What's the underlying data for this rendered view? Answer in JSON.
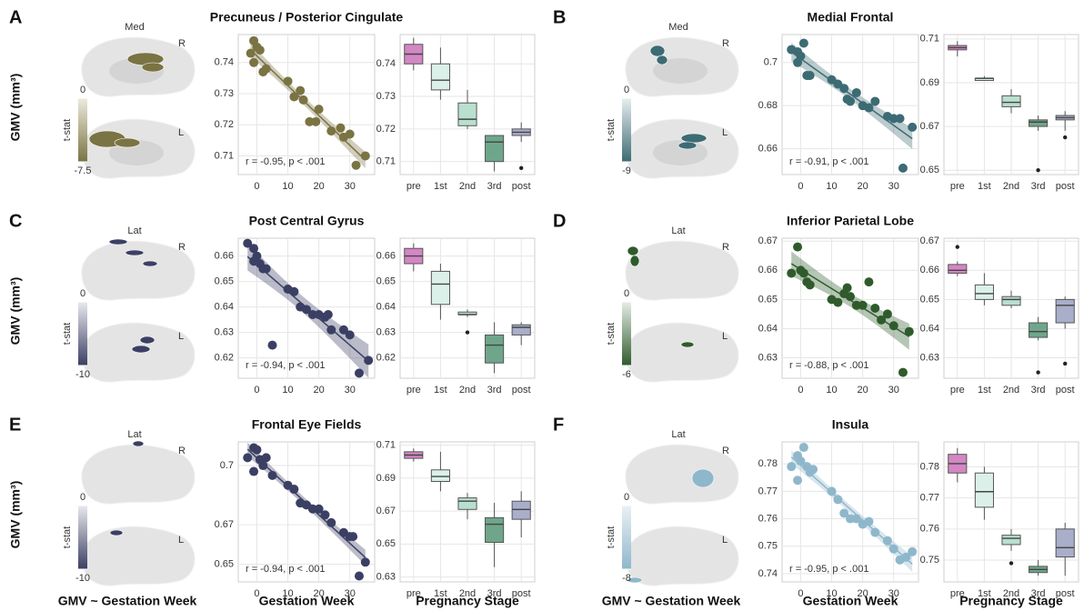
{
  "panels": [
    {
      "letter": "A",
      "ylabel": "GMV (mm³)",
      "brain": {
        "view": "Med",
        "right": "R",
        "left": "L",
        "colorbar": {
          "title": "t-stat",
          "lim": [
            -7.5,
            0
          ],
          "ticks": [
            0,
            -7.5
          ],
          "colors": [
            "#ecebdc",
            "#7a7343"
          ]
        }
      }
    },
    {
      "letter": "B",
      "brain": {
        "view": "Med",
        "right": "R",
        "left": "L",
        "colorbar": {
          "title": "t-stat",
          "lim": [
            -9,
            0
          ],
          "ticks": [
            0,
            -9
          ],
          "colors": [
            "#e6eeef",
            "#3d6b74"
          ]
        }
      }
    },
    {
      "letter": "C",
      "ylabel": "GMV (mm³)",
      "brain": {
        "view": "Lat",
        "right": "R",
        "left": "L",
        "colorbar": {
          "title": "t-stat",
          "lim": [
            -10,
            0
          ],
          "ticks": [
            0,
            -10
          ],
          "colors": [
            "#e8e9ef",
            "#3b3f63"
          ]
        }
      }
    },
    {
      "letter": "D",
      "brain": {
        "view": "Lat",
        "right": "R",
        "left": "L",
        "colorbar": {
          "title": "t-stat",
          "lim": [
            -6,
            0
          ],
          "ticks": [
            0,
            -6
          ],
          "colors": [
            "#e6ede5",
            "#2f5b2c"
          ]
        }
      }
    },
    {
      "letter": "E",
      "ylabel": "GMV (mm³)",
      "caption": "GMV ~ Gestation Week",
      "brain": {
        "view": "Lat",
        "right": "R",
        "left": "L",
        "colorbar": {
          "title": "t-stat",
          "lim": [
            -10,
            0
          ],
          "ticks": [
            0,
            -10
          ],
          "colors": [
            "#e8e9ef",
            "#3b3f63"
          ]
        }
      }
    },
    {
      "letter": "F",
      "caption": "GMV ~ Gestation Week",
      "brain": {
        "view": "Lat",
        "right": "R",
        "left": "L",
        "colorbar": {
          "title": "t-stat",
          "lim": [
            -8,
            0
          ],
          "ticks": [
            0,
            -8
          ],
          "colors": [
            "#eaf1f4",
            "#8fb7cb"
          ]
        }
      }
    }
  ],
  "chart_data": [
    {
      "type": "scatter",
      "title": "Precuneus / Posterior Cingulate",
      "annotation": "r = -0.95, p < .001",
      "color": "#7a7343",
      "x": [
        -2,
        -1,
        0,
        1,
        2,
        3,
        -1,
        10,
        12,
        14,
        15,
        17,
        19,
        20,
        24,
        27,
        28,
        30,
        32,
        35
      ],
      "values": [
        0.743,
        0.747,
        0.745,
        0.744,
        0.737,
        0.738,
        0.74,
        0.734,
        0.729,
        0.731,
        0.728,
        0.721,
        0.721,
        0.725,
        0.718,
        0.719,
        0.716,
        0.717,
        0.707,
        0.71
      ],
      "xlim": [
        -6,
        38
      ],
      "xticks": [
        0,
        10,
        20,
        30
      ],
      "ylim": [
        0.704,
        0.749
      ],
      "yticks": [
        0.71,
        0.72,
        0.73,
        0.74
      ],
      "grid": true
    },
    {
      "type": "box",
      "categories": [
        "pre",
        "1st",
        "2nd",
        "3rd",
        "post"
      ],
      "colors": [
        "#d387c4",
        "#dcf0ea",
        "#b9dfcf",
        "#6fa68b",
        "#a9aecb"
      ],
      "boxes": [
        {
          "min": 0.738,
          "q1": 0.74,
          "median": 0.743,
          "q3": 0.746,
          "max": 0.748,
          "outliers": []
        },
        {
          "min": 0.729,
          "q1": 0.732,
          "median": 0.735,
          "q3": 0.74,
          "max": 0.745,
          "outliers": []
        },
        {
          "min": 0.72,
          "q1": 0.721,
          "median": 0.723,
          "q3": 0.728,
          "max": 0.732,
          "outliers": []
        },
        {
          "min": 0.707,
          "q1": 0.71,
          "median": 0.716,
          "q3": 0.718,
          "max": 0.718,
          "outliers": []
        },
        {
          "min": 0.716,
          "q1": 0.718,
          "median": 0.719,
          "q3": 0.72,
          "max": 0.722,
          "outliers": [
            0.708
          ]
        }
      ],
      "ylim": [
        0.706,
        0.749
      ],
      "yticks": [
        0.71,
        0.72,
        0.73,
        0.74
      ],
      "grid": true
    },
    {
      "type": "scatter",
      "title": "Medial Frontal",
      "annotation": "r = -0.91, p < .001",
      "color": "#3d6b74",
      "x": [
        -3,
        -1,
        0,
        1,
        2,
        3,
        -1,
        10,
        12,
        14,
        15,
        16,
        18,
        20,
        22,
        24,
        28,
        30,
        32,
        33,
        36
      ],
      "values": [
        0.706,
        0.705,
        0.703,
        0.709,
        0.694,
        0.694,
        0.7,
        0.692,
        0.69,
        0.688,
        0.683,
        0.682,
        0.686,
        0.68,
        0.679,
        0.682,
        0.675,
        0.674,
        0.674,
        0.651,
        0.67
      ],
      "xlim": [
        -6,
        38
      ],
      "xticks": [
        0,
        10,
        20,
        30
      ],
      "ylim": [
        0.648,
        0.713
      ],
      "yticks": [
        0.66,
        0.68,
        0.7
      ],
      "grid": true
    },
    {
      "type": "box",
      "categories": [
        "pre",
        "1st",
        "2nd",
        "3rd",
        "post"
      ],
      "colors": [
        "#d387c4",
        "#dcf0ea",
        "#b9dfcf",
        "#6fa68b",
        "#a9aecb"
      ],
      "boxes": [
        {
          "min": 0.702,
          "q1": 0.705,
          "median": 0.706,
          "q3": 0.707,
          "max": 0.709,
          "outliers": []
        },
        {
          "min": 0.691,
          "q1": 0.691,
          "median": 0.692,
          "q3": 0.692,
          "max": 0.693,
          "outliers": []
        },
        {
          "min": 0.676,
          "q1": 0.679,
          "median": 0.681,
          "q3": 0.684,
          "max": 0.687,
          "outliers": []
        },
        {
          "min": 0.668,
          "q1": 0.67,
          "median": 0.672,
          "q3": 0.673,
          "max": 0.675,
          "outliers": [
            0.65
          ]
        },
        {
          "min": 0.668,
          "q1": 0.673,
          "median": 0.674,
          "q3": 0.675,
          "max": 0.677,
          "outliers": [
            0.665
          ]
        }
      ],
      "ylim": [
        0.648,
        0.712
      ],
      "yticks": [
        0.65,
        0.67,
        0.69,
        0.71
      ],
      "grid": true
    },
    {
      "type": "scatter",
      "title": "Post Central Gyrus",
      "annotation": "r = -0.94, p < .001",
      "color": "#3b3f63",
      "x": [
        -3,
        -1,
        0,
        1,
        2,
        3,
        -1,
        5,
        10,
        12,
        14,
        16,
        18,
        20,
        22,
        23,
        24,
        28,
        30,
        33,
        36
      ],
      "values": [
        0.665,
        0.663,
        0.66,
        0.657,
        0.655,
        0.655,
        0.658,
        0.625,
        0.647,
        0.646,
        0.64,
        0.639,
        0.637,
        0.637,
        0.636,
        0.637,
        0.631,
        0.631,
        0.629,
        0.614,
        0.619
      ],
      "xlim": [
        -6,
        38
      ],
      "xticks": [
        0,
        10,
        20,
        30
      ],
      "ylim": [
        0.612,
        0.667
      ],
      "yticks": [
        0.62,
        0.63,
        0.64,
        0.65,
        0.66
      ],
      "grid": true
    },
    {
      "type": "box",
      "categories": [
        "pre",
        "1st",
        "2nd",
        "3rd",
        "post"
      ],
      "colors": [
        "#d387c4",
        "#dcf0ea",
        "#b9dfcf",
        "#6fa68b",
        "#a9aecb"
      ],
      "boxes": [
        {
          "min": 0.654,
          "q1": 0.657,
          "median": 0.66,
          "q3": 0.663,
          "max": 0.665,
          "outliers": []
        },
        {
          "min": 0.635,
          "q1": 0.641,
          "median": 0.649,
          "q3": 0.654,
          "max": 0.657,
          "outliers": []
        },
        {
          "min": 0.636,
          "q1": 0.637,
          "median": 0.637,
          "q3": 0.638,
          "max": 0.639,
          "outliers": [
            0.63
          ]
        },
        {
          "min": 0.614,
          "q1": 0.618,
          "median": 0.625,
          "q3": 0.629,
          "max": 0.634,
          "outliers": []
        },
        {
          "min": 0.625,
          "q1": 0.629,
          "median": 0.632,
          "q3": 0.633,
          "max": 0.634,
          "outliers": []
        }
      ],
      "ylim": [
        0.612,
        0.667
      ],
      "yticks": [
        0.62,
        0.63,
        0.64,
        0.65,
        0.66
      ],
      "grid": true
    },
    {
      "type": "scatter",
      "title": "Inferior Parietal Lobe",
      "annotation": "r = -0.88, p < .001",
      "color": "#2f5b2c",
      "x": [
        -3,
        -1,
        0,
        1,
        2,
        3,
        10,
        12,
        14,
        15,
        16,
        18,
        20,
        22,
        24,
        26,
        28,
        30,
        33,
        35
      ],
      "values": [
        0.659,
        0.668,
        0.66,
        0.659,
        0.656,
        0.655,
        0.65,
        0.649,
        0.652,
        0.654,
        0.651,
        0.648,
        0.648,
        0.656,
        0.647,
        0.643,
        0.645,
        0.641,
        0.625,
        0.639
      ],
      "xlim": [
        -6,
        38
      ],
      "xticks": [
        0,
        10,
        20,
        30
      ],
      "ylim": [
        0.623,
        0.671
      ],
      "yticks": [
        0.63,
        0.64,
        0.65,
        0.66,
        0.67
      ],
      "grid": true
    },
    {
      "type": "box",
      "categories": [
        "pre",
        "1st",
        "2nd",
        "3rd",
        "post"
      ],
      "colors": [
        "#d387c4",
        "#dcf0ea",
        "#b9dfcf",
        "#6fa68b",
        "#a9aecb"
      ],
      "boxes": [
        {
          "min": 0.658,
          "q1": 0.659,
          "median": 0.66,
          "q3": 0.662,
          "max": 0.663,
          "outliers": [
            0.668
          ]
        },
        {
          "min": 0.648,
          "q1": 0.65,
          "median": 0.652,
          "q3": 0.655,
          "max": 0.659,
          "outliers": []
        },
        {
          "min": 0.647,
          "q1": 0.648,
          "median": 0.65,
          "q3": 0.651,
          "max": 0.653,
          "outliers": []
        },
        {
          "min": 0.636,
          "q1": 0.637,
          "median": 0.639,
          "q3": 0.642,
          "max": 0.644,
          "outliers": [
            0.625
          ]
        },
        {
          "min": 0.64,
          "q1": 0.642,
          "median": 0.648,
          "q3": 0.65,
          "max": 0.651,
          "outliers": [
            0.628
          ]
        }
      ],
      "ylim": [
        0.623,
        0.671
      ],
      "yticks": [
        0.63,
        0.64,
        0.65,
        0.66,
        0.67
      ],
      "grid": true
    },
    {
      "type": "scatter",
      "title": "Frontal Eye Fields",
      "annotation": "r = -0.94, p < .001",
      "color": "#3b3f63",
      "xlabel": "Gestation Week",
      "x": [
        -3,
        -1,
        0,
        1,
        2,
        3,
        -1,
        5,
        10,
        12,
        14,
        16,
        18,
        20,
        22,
        24,
        28,
        30,
        31,
        33,
        35
      ],
      "values": [
        0.704,
        0.709,
        0.708,
        0.703,
        0.7,
        0.704,
        0.697,
        0.695,
        0.69,
        0.688,
        0.681,
        0.68,
        0.678,
        0.678,
        0.675,
        0.671,
        0.666,
        0.664,
        0.664,
        0.644,
        0.651
      ],
      "xlim": [
        -6,
        38
      ],
      "xticks": [
        0,
        10,
        20,
        30
      ],
      "ylim": [
        0.641,
        0.712
      ],
      "yticks": [
        0.65,
        0.67,
        0.7
      ],
      "grid": true
    },
    {
      "type": "box",
      "categories": [
        "pre",
        "1st",
        "2nd",
        "3rd",
        "post"
      ],
      "colors": [
        "#d387c4",
        "#dcf0ea",
        "#b9dfcf",
        "#6fa68b",
        "#a9aecb"
      ],
      "xlabel": "Pregnancy Stage",
      "boxes": [
        {
          "min": 0.7,
          "q1": 0.702,
          "median": 0.704,
          "q3": 0.706,
          "max": 0.708,
          "outliers": []
        },
        {
          "min": 0.682,
          "q1": 0.688,
          "median": 0.691,
          "q3": 0.695,
          "max": 0.706,
          "outliers": []
        },
        {
          "min": 0.665,
          "q1": 0.671,
          "median": 0.676,
          "q3": 0.678,
          "max": 0.681,
          "outliers": []
        },
        {
          "min": 0.636,
          "q1": 0.651,
          "median": 0.662,
          "q3": 0.666,
          "max": 0.675,
          "outliers": []
        },
        {
          "min": 0.654,
          "q1": 0.665,
          "median": 0.671,
          "q3": 0.676,
          "max": 0.682,
          "outliers": []
        }
      ],
      "ylim": [
        0.627,
        0.712
      ],
      "yticks": [
        0.63,
        0.65,
        0.67,
        0.69,
        0.71
      ],
      "grid": true
    },
    {
      "type": "scatter",
      "title": "Insula",
      "annotation": "r = -0.95, p < .001",
      "color": "#8fb7cb",
      "xlabel": "Gestation Week",
      "x": [
        -3,
        -1,
        0,
        1,
        2,
        3,
        4,
        -1,
        10,
        12,
        14,
        16,
        18,
        20,
        22,
        24,
        28,
        30,
        32,
        34,
        36
      ],
      "values": [
        0.779,
        0.783,
        0.781,
        0.786,
        0.779,
        0.777,
        0.778,
        0.774,
        0.77,
        0.767,
        0.762,
        0.76,
        0.76,
        0.758,
        0.759,
        0.755,
        0.752,
        0.749,
        0.745,
        0.746,
        0.748
      ],
      "xlim": [
        -6,
        38
      ],
      "xticks": [
        0,
        10,
        20,
        30
      ],
      "ylim": [
        0.737,
        0.788
      ],
      "yticks": [
        0.74,
        0.75,
        0.76,
        0.77,
        0.78
      ],
      "grid": true
    },
    {
      "type": "box",
      "categories": [
        "pre",
        "1st",
        "2nd",
        "3rd",
        "post"
      ],
      "colors": [
        "#d387c4",
        "#dcf0ea",
        "#b9dfcf",
        "#6fa68b",
        "#a9aecb"
      ],
      "xlabel": "Pregnancy Stage",
      "boxes": [
        {
          "min": 0.775,
          "q1": 0.778,
          "median": 0.781,
          "q3": 0.784,
          "max": 0.786,
          "outliers": []
        },
        {
          "min": 0.763,
          "q1": 0.767,
          "median": 0.772,
          "q3": 0.778,
          "max": 0.78,
          "outliers": []
        },
        {
          "min": 0.753,
          "q1": 0.755,
          "median": 0.757,
          "q3": 0.758,
          "max": 0.76,
          "outliers": [
            0.749
          ]
        },
        {
          "min": 0.745,
          "q1": 0.746,
          "median": 0.747,
          "q3": 0.748,
          "max": 0.75,
          "outliers": []
        },
        {
          "min": 0.745,
          "q1": 0.751,
          "median": 0.754,
          "q3": 0.76,
          "max": 0.762,
          "outliers": []
        }
      ],
      "ylim": [
        0.743,
        0.788
      ],
      "yticks": [
        0.75,
        0.76,
        0.77,
        0.78
      ],
      "grid": true
    }
  ]
}
